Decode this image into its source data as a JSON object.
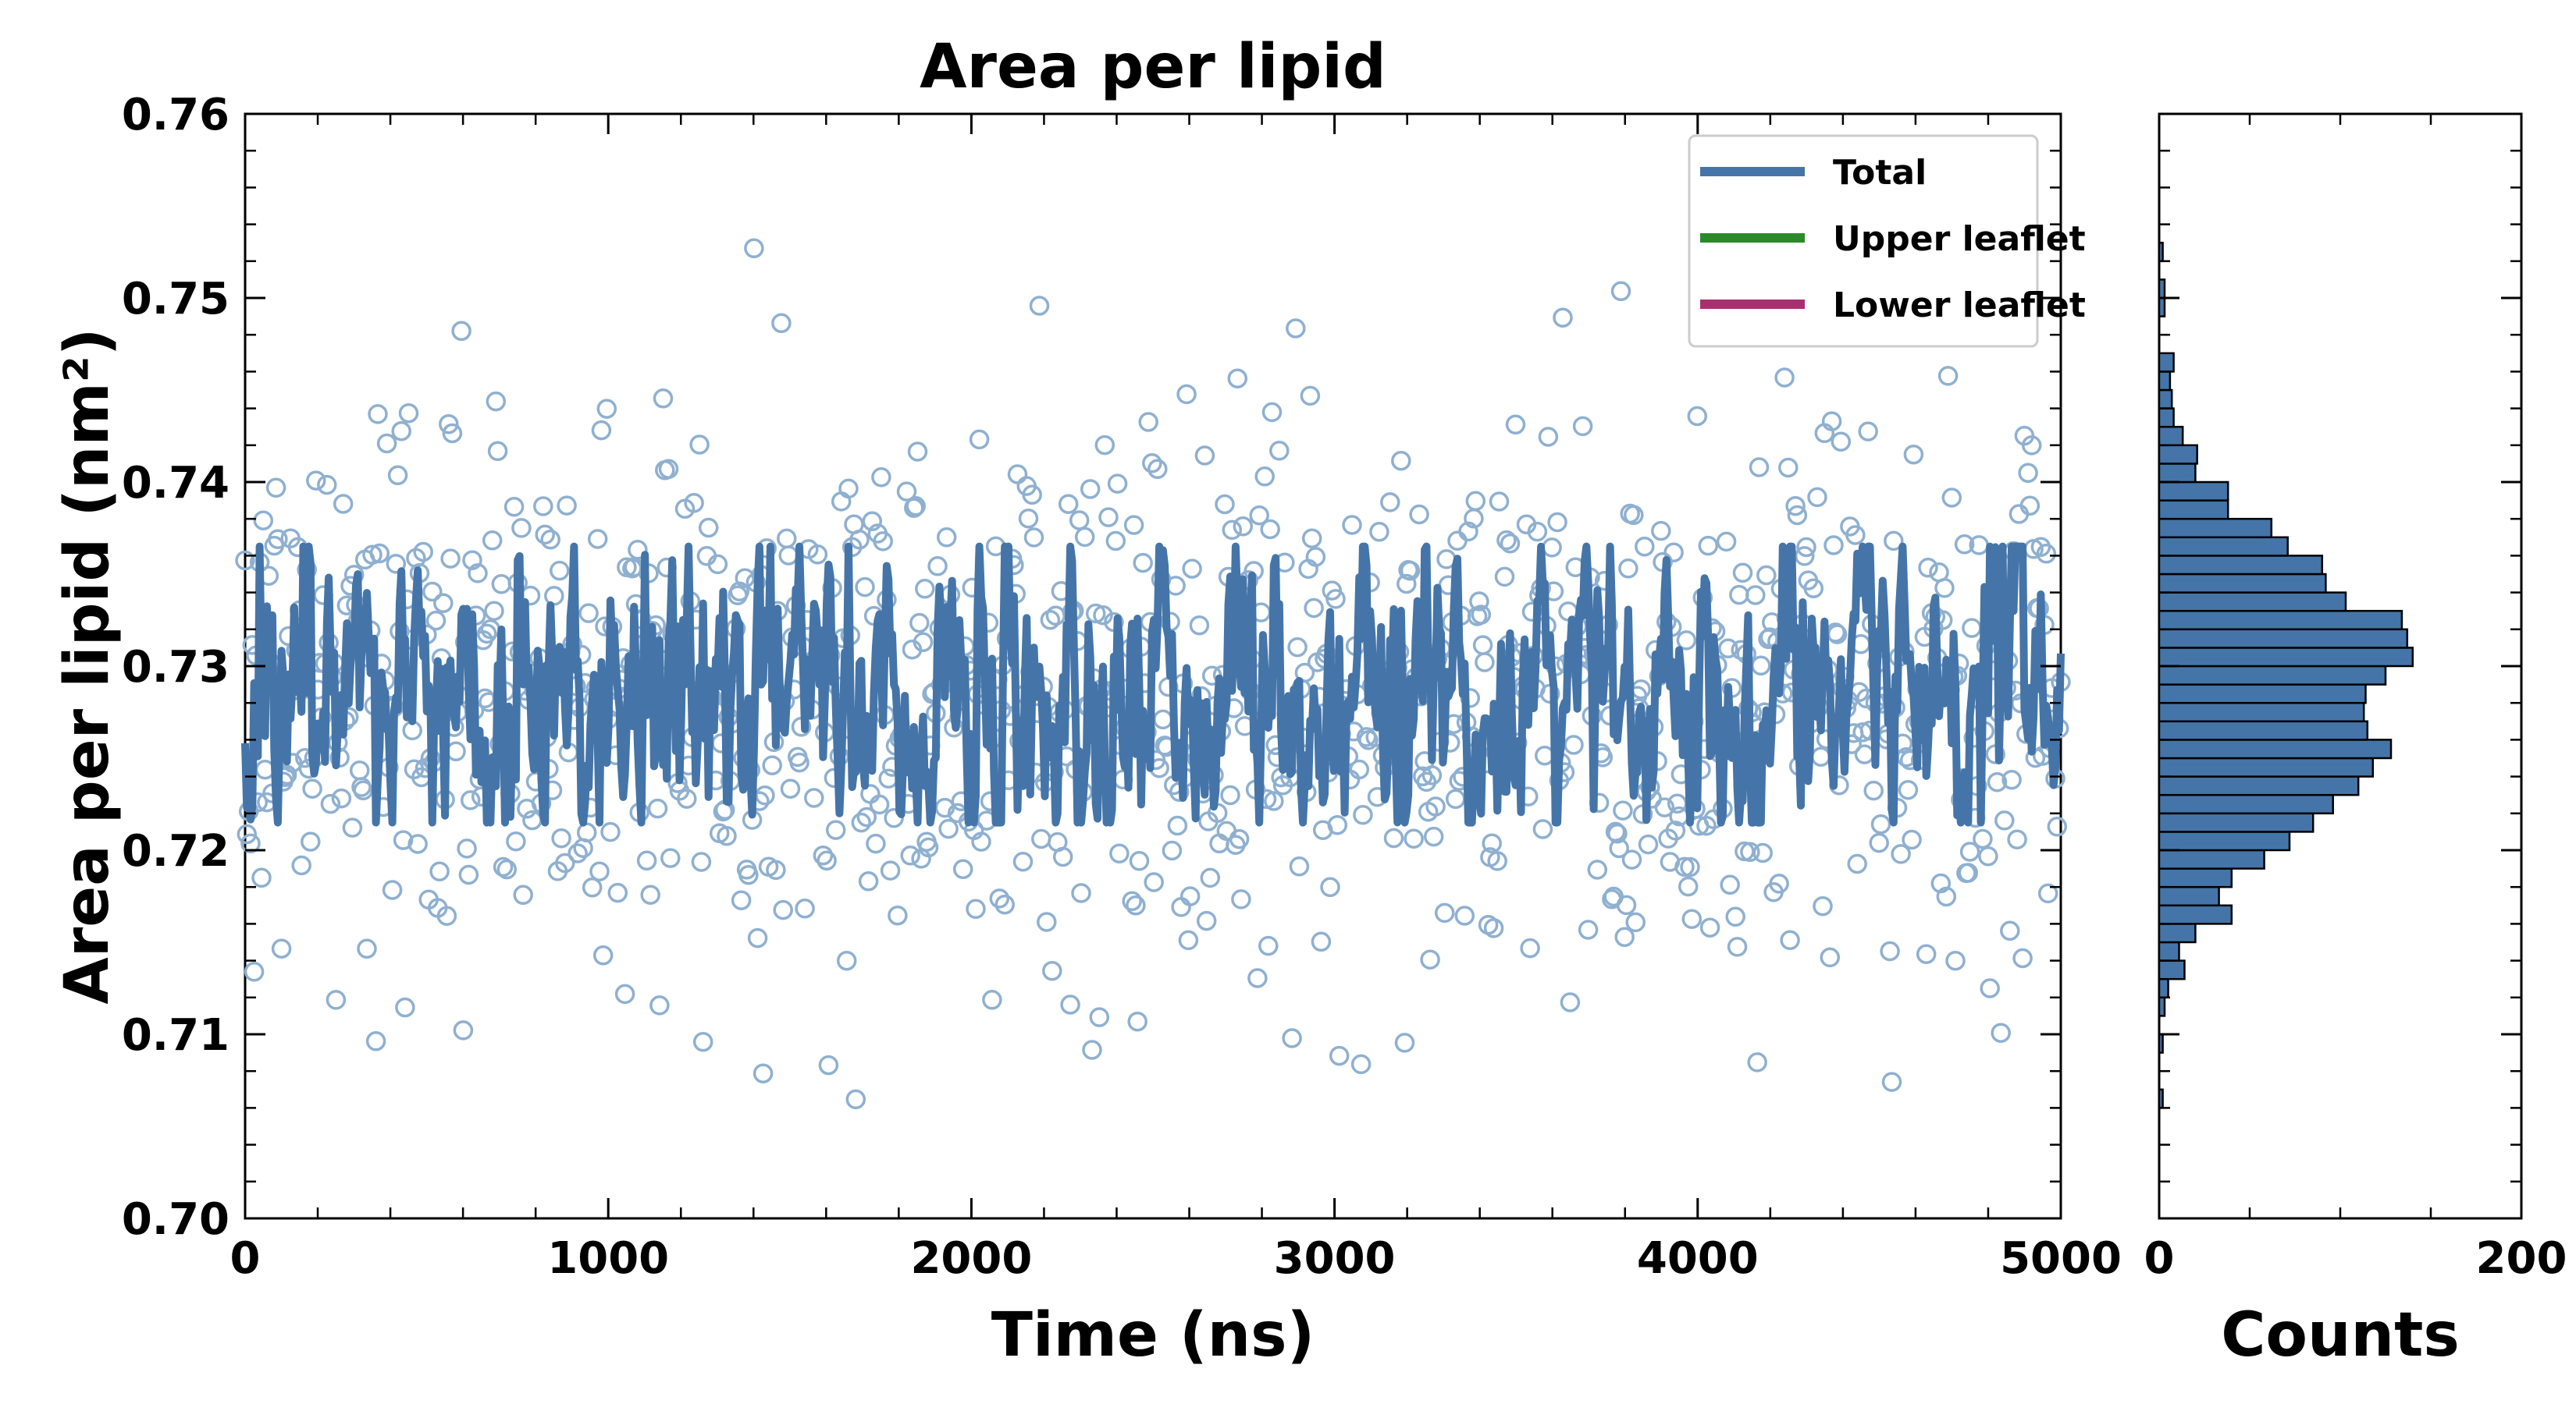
{
  "chart_data": [
    {
      "type": "scatter",
      "title": "Area per lipid",
      "xlabel": "Time (ns)",
      "ylabel": "Area per lipid (nm²)",
      "xlim": [
        0,
        5000
      ],
      "ylim": [
        0.7,
        0.76
      ],
      "xticks": [
        "0",
        "1000",
        "2000",
        "3000",
        "4000",
        "5000"
      ],
      "yticks": [
        "0.70",
        "0.71",
        "0.72",
        "0.73",
        "0.74",
        "0.75",
        "0.76"
      ],
      "grid": false,
      "legend_position": "top-right",
      "legend": [
        {
          "label": "Total",
          "color": "#4575a8"
        },
        {
          "label": "Upper leaflet",
          "color": "#2a8a2a"
        },
        {
          "label": "Lower leaflet",
          "color": "#a8306e"
        }
      ],
      "series": [
        {
          "name": "Total",
          "kind": "raw-points",
          "marker": "open-circle",
          "color": "#8fb0d0",
          "point_count": 1000,
          "x_range": [
            0,
            5000
          ],
          "mean": 0.7285,
          "std": 0.0078,
          "min": 0.7063,
          "max": 0.7527
        },
        {
          "name": "Total",
          "kind": "smoothed-line",
          "color": "#4575a8",
          "x_range": [
            0,
            5000
          ],
          "mean": 0.7285,
          "min": 0.7215,
          "max": 0.7365
        }
      ]
    },
    {
      "type": "bar",
      "orientation": "horizontal",
      "xlabel": "Counts",
      "xlim": [
        0,
        200
      ],
      "xticks": [
        "0",
        "200"
      ],
      "ylim": [
        0.7,
        0.76
      ],
      "bar_color": "#4575a8",
      "bin_width": 0.001,
      "bins_start": [
        0.706,
        0.707,
        0.708,
        0.709,
        0.71,
        0.711,
        0.712,
        0.713,
        0.714,
        0.715,
        0.716,
        0.717,
        0.718,
        0.719,
        0.72,
        0.721,
        0.722,
        0.723,
        0.724,
        0.725,
        0.726,
        0.727,
        0.728,
        0.729,
        0.73,
        0.731,
        0.732,
        0.733,
        0.734,
        0.735,
        0.736,
        0.737,
        0.738,
        0.739,
        0.74,
        0.741,
        0.742,
        0.743,
        0.744,
        0.745,
        0.746,
        0.747,
        0.748,
        0.749,
        0.75,
        0.751,
        0.752
      ],
      "counts": [
        2,
        0,
        0,
        2,
        0,
        3,
        5,
        14,
        11,
        20,
        40,
        33,
        40,
        58,
        72,
        85,
        96,
        110,
        118,
        128,
        115,
        113,
        114,
        125,
        140,
        137,
        134,
        103,
        92,
        90,
        71,
        62,
        38,
        38,
        20,
        21,
        13,
        8,
        7,
        6,
        8,
        0,
        0,
        3,
        3,
        0,
        2
      ]
    }
  ]
}
